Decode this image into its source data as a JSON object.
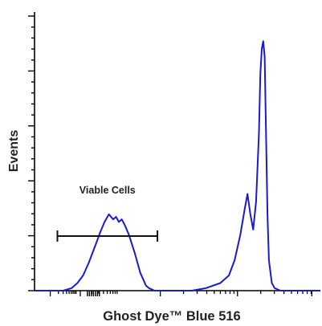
{
  "chart_data": {
    "type": "line",
    "title": "",
    "xlabel": "Ghost Dye™ Blue 516",
    "ylabel": "Events",
    "x_scale": "log",
    "xlim": [
      0,
      1
    ],
    "ylim": [
      0,
      1
    ],
    "annotations": [
      {
        "text": "Viable Cells",
        "gate_x": [
          0.08,
          0.43
        ]
      }
    ],
    "series": [
      {
        "color": "#1a1ad4",
        "x": [
          0.0,
          0.05,
          0.1,
          0.13,
          0.15,
          0.17,
          0.19,
          0.21,
          0.23,
          0.245,
          0.26,
          0.275,
          0.285,
          0.295,
          0.305,
          0.315,
          0.33,
          0.35,
          0.37,
          0.39,
          0.4,
          0.42,
          0.46,
          0.5,
          0.55,
          0.6,
          0.65,
          0.68,
          0.7,
          0.72,
          0.735,
          0.745,
          0.755,
          0.765,
          0.775,
          0.785,
          0.79,
          0.795,
          0.8,
          0.805,
          0.81,
          0.815,
          0.82,
          0.83,
          0.84,
          0.86,
          0.9,
          0.95,
          1.0
        ],
        "y": [
          0.0,
          0.0,
          0.0,
          0.01,
          0.03,
          0.06,
          0.11,
          0.17,
          0.23,
          0.27,
          0.3,
          0.28,
          0.29,
          0.27,
          0.28,
          0.26,
          0.22,
          0.15,
          0.07,
          0.02,
          0.01,
          0.0,
          0.0,
          0.0,
          0.0,
          0.01,
          0.03,
          0.06,
          0.12,
          0.22,
          0.32,
          0.38,
          0.3,
          0.24,
          0.35,
          0.62,
          0.85,
          0.95,
          0.98,
          0.92,
          0.6,
          0.3,
          0.12,
          0.03,
          0.01,
          0.0,
          0.0,
          0.0,
          0.0
        ]
      }
    ],
    "grid": false,
    "legend": "none"
  }
}
